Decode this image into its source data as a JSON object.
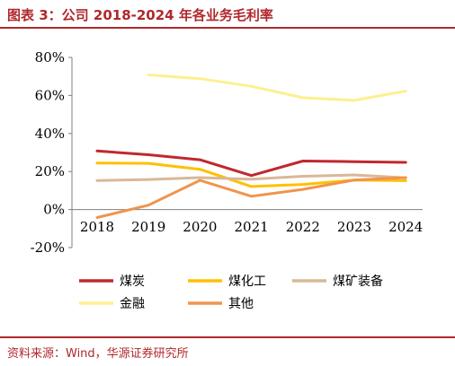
{
  "header": {
    "title": "图表 3：公司 2018-2024 年各业务毛利率"
  },
  "footer": {
    "source": "资料来源：Wind，华源证券研究所"
  },
  "chart_data": {
    "type": "line",
    "title": "",
    "xlabel": "",
    "ylabel": "",
    "x": [
      "2018",
      "2019",
      "2020",
      "2021",
      "2022",
      "2023",
      "2024"
    ],
    "ylim": [
      -20,
      80
    ],
    "yticks": [
      -20,
      0,
      20,
      40,
      60,
      80
    ],
    "ytick_labels": [
      "-20%",
      "0%",
      "20%",
      "40%",
      "60%",
      "80%"
    ],
    "grid": false,
    "legend_position": "bottom",
    "series": [
      {
        "name": "煤炭",
        "color": "#c0282d",
        "values": [
          30.8,
          28.8,
          26.2,
          17.9,
          25.5,
          25.2,
          24.8
        ]
      },
      {
        "name": "煤化工",
        "color": "#ffc000",
        "values": [
          24.5,
          24.3,
          21.2,
          12.1,
          13.2,
          15.5,
          15.2
        ]
      },
      {
        "name": "煤矿装备",
        "color": "#d9b897",
        "values": [
          15.3,
          15.8,
          16.8,
          16.0,
          17.5,
          18.2,
          16.7
        ]
      },
      {
        "name": "金融",
        "color": "#fdf08f",
        "values": [
          null,
          70.8,
          68.8,
          64.8,
          58.8,
          57.4,
          62.3
        ]
      },
      {
        "name": "其他",
        "color": "#f0944d",
        "values": [
          -4.2,
          2.3,
          15.4,
          7.0,
          10.6,
          15.5,
          16.8
        ]
      }
    ]
  }
}
